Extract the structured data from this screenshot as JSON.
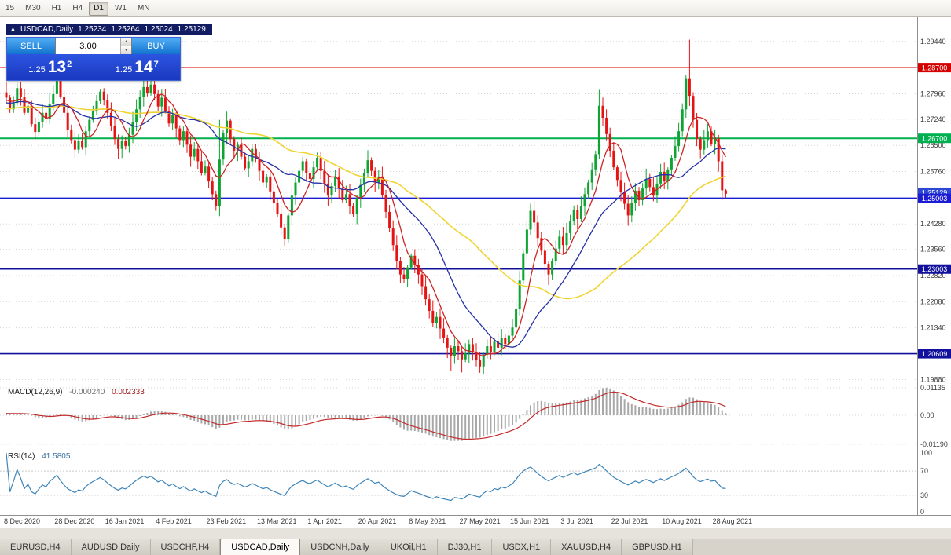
{
  "toolbar": {
    "timeframes": [
      {
        "label": "15",
        "active": false
      },
      {
        "label": "M30",
        "active": false
      },
      {
        "label": "H1",
        "active": false
      },
      {
        "label": "H4",
        "active": false
      },
      {
        "label": "D1",
        "active": true
      },
      {
        "label": "W1",
        "active": false
      },
      {
        "label": "MN",
        "active": false
      }
    ]
  },
  "chart_header": {
    "collapse_icon": "▲",
    "symbol": "USDCAD,Daily",
    "open": "1.25234",
    "high": "1.25264",
    "low": "1.25024",
    "close": "1.25129"
  },
  "trade_panel": {
    "sell_label": "SELL",
    "buy_label": "BUY",
    "volume": "3.00",
    "spinner_up_icon": "▲",
    "spinner_down_icon": "▼",
    "sell_price": {
      "prefix": "1.25",
      "big": "13",
      "sup": "2"
    },
    "buy_price": {
      "prefix": "1.25",
      "big": "14",
      "sup": "7"
    }
  },
  "price_axis": {
    "ticks": [
      {
        "label": "1.29440",
        "value": 1.2944
      },
      {
        "label": "1.27960",
        "value": 1.2796
      },
      {
        "label": "1.27240",
        "value": 1.2724
      },
      {
        "label": "1.26500",
        "value": 1.265
      },
      {
        "label": "1.25760",
        "value": 1.2576
      },
      {
        "label": "1.24280",
        "value": 1.2428
      },
      {
        "label": "1.23560",
        "value": 1.2356
      },
      {
        "label": "1.22820",
        "value": 1.2282
      },
      {
        "label": "1.22080",
        "value": 1.2208
      },
      {
        "label": "1.21340",
        "value": 1.2134
      },
      {
        "label": "1.19880",
        "value": 1.1988
      }
    ]
  },
  "levels": [
    {
      "value": 1.287,
      "label": "1.28700",
      "color": "#d40000",
      "width": 1.2
    },
    {
      "value": 1.267,
      "label": "1.26700",
      "color": "#00b050",
      "width": 2
    },
    {
      "value": 1.25003,
      "label": "1.25003",
      "color": "#1b1bd4",
      "width": 2
    },
    {
      "value": 1.23003,
      "label": "1.23003",
      "color": "#11119e",
      "width": 1.6
    },
    {
      "value": 1.20609,
      "label": "1.20609",
      "color": "#11119e",
      "width": 1.6
    }
  ],
  "current_price": {
    "value": 1.25129,
    "label": "1.25129",
    "color": "#2b47d4"
  },
  "macd_panel": {
    "name": "MACD(12,26,9)",
    "value1": "-0.000240",
    "value2": "0.002333",
    "axis_labels": [
      {
        "text": "0.01135",
        "value": 0.01135
      },
      {
        "text": "0.00",
        "value": 0
      },
      {
        "text": "-0.01190",
        "value": -0.0119
      }
    ]
  },
  "rsi_panel": {
    "name": "RSI(14)",
    "value": "41.5805",
    "axis_labels": [
      {
        "text": "100",
        "value": 100
      },
      {
        "text": "70",
        "value": 70
      },
      {
        "text": "30",
        "value": 30
      },
      {
        "text": "0",
        "value": 0
      }
    ],
    "levels": [
      70,
      30
    ]
  },
  "bottom_tabs": [
    {
      "label": "EURUSD,H4",
      "active": false
    },
    {
      "label": "AUDUSD,Daily",
      "active": false
    },
    {
      "label": "USDCHF,H4",
      "active": false
    },
    {
      "label": "USDCAD,Daily",
      "active": true
    },
    {
      "label": "USDCNH,Daily",
      "active": false
    },
    {
      "label": "UKOil,H1",
      "active": false
    },
    {
      "label": "DJ30,H1",
      "active": false
    },
    {
      "label": "USDX,H1",
      "active": false
    },
    {
      "label": "XAUUSD,H4",
      "active": false
    },
    {
      "label": "GBPUSD,H1",
      "active": false
    }
  ],
  "chart_data": {
    "type": "candlestick",
    "symbol": "USDCAD",
    "timeframe": "Daily",
    "last_candle": {
      "open": 1.25234,
      "high": 1.25264,
      "low": 1.25024,
      "close": 1.25129
    },
    "up_color": "#0ea432",
    "down_color": "#e41414",
    "x_labels": [
      "8 Dec 2020",
      "28 Dec 2020",
      "16 Jan 2021",
      "4 Feb 2021",
      "23 Feb 2021",
      "13 Mar 2021",
      "1 Apr 2021",
      "20 Apr 2021",
      "8 May 2021",
      "27 May 2021",
      "15 Jun 2021",
      "3 Jul 2021",
      "22 Jul 2021",
      "10 Aug 2021",
      "28 Aug 2021"
    ],
    "x_label_step": 14,
    "price_range": {
      "top": 1.2999,
      "bottom": 1.1976
    },
    "first_open": 1.28,
    "closes": [
      1.2785,
      1.2752,
      1.277,
      1.2812,
      1.2788,
      1.2742,
      1.2762,
      1.271,
      1.2688,
      1.2715,
      1.2742,
      1.2726,
      1.2768,
      1.2795,
      1.2832,
      1.2788,
      1.2742,
      1.2695,
      1.2665,
      1.2638,
      1.2662,
      1.2645,
      1.269,
      1.2722,
      1.2748,
      1.2775,
      1.2802,
      1.2778,
      1.2742,
      1.2705,
      1.2668,
      1.264,
      1.2662,
      1.2648,
      1.268,
      1.2715,
      1.2752,
      1.2788,
      1.2815,
      1.2798,
      1.2822,
      1.2795,
      1.276,
      1.2785,
      1.2748,
      1.2712,
      1.2735,
      1.2698,
      1.2665,
      1.269,
      1.2652,
      1.2618,
      1.264,
      1.2605,
      1.2572,
      1.259,
      1.2548,
      1.2512,
      1.2478,
      1.261,
      1.2685,
      1.272,
      1.2668,
      1.2635,
      1.2652,
      1.2618,
      1.2585,
      1.2605,
      1.264,
      1.2612,
      1.2578,
      1.2545,
      1.2562,
      1.252,
      1.2488,
      1.2455,
      1.2418,
      1.2385,
      1.2452,
      1.2508,
      1.2545,
      1.2578,
      1.2605,
      1.2572,
      1.2555,
      1.2588,
      1.2615,
      1.2578,
      1.2542,
      1.2508,
      1.2535,
      1.2562,
      1.2528,
      1.2495,
      1.2512,
      1.2478,
      1.2455,
      1.2502,
      1.2538,
      1.2572,
      1.2608,
      1.2578,
      1.2545,
      1.2562,
      1.251,
      1.2462,
      1.2415,
      1.2368,
      1.2322,
      1.2285,
      1.2272,
      1.2305,
      1.2338,
      1.2312,
      1.2285,
      1.2252,
      1.2215,
      1.2182,
      1.2148,
      1.2165,
      1.2132,
      1.2105,
      1.2078,
      1.2055,
      1.2082,
      1.2068,
      1.2045,
      1.2062,
      1.2088,
      1.2065,
      1.2042,
      1.2025,
      1.2058,
      1.2082,
      1.2065,
      1.2095,
      1.2078,
      1.2105,
      1.2088,
      1.2112,
      1.2135,
      1.2188,
      1.2268,
      1.2345,
      1.2412,
      1.2465,
      1.2432,
      1.2388,
      1.2352,
      1.2315,
      1.2285,
      1.2322,
      1.2358,
      1.2392,
      1.2368,
      1.2402,
      1.2435,
      1.2468,
      1.2442,
      1.2478,
      1.2512,
      1.2545,
      1.2582,
      1.2625,
      1.2762,
      1.2728,
      1.2682,
      1.2635,
      1.2588,
      1.2552,
      1.2518,
      1.2485,
      1.2452,
      1.2488,
      1.2522,
      1.2495,
      1.2528,
      1.2555,
      1.2532,
      1.2508,
      1.2542,
      1.2575,
      1.2548,
      1.2582,
      1.2615,
      1.2648,
      1.269,
      1.2752,
      1.284,
      1.279,
      1.2722,
      1.2668,
      1.2638,
      1.2665,
      1.269,
      1.2655,
      1.267,
      1.2605,
      1.2523,
      1.2513
    ],
    "wick_overrides": [
      {
        "i": 14,
        "h": 1.2848
      },
      {
        "i": 40,
        "h": 1.2843
      },
      {
        "i": 58,
        "l": 1.2465
      },
      {
        "i": 59,
        "h": 1.2722
      },
      {
        "i": 77,
        "l": 1.2365
      },
      {
        "i": 96,
        "l": 1.2448
      },
      {
        "i": 110,
        "l": 1.2262
      },
      {
        "i": 123,
        "l": 1.2013
      },
      {
        "i": 126,
        "l": 1.2008
      },
      {
        "i": 131,
        "l": 1.2007
      },
      {
        "i": 145,
        "h": 1.2485
      },
      {
        "i": 164,
        "h": 1.2807
      },
      {
        "i": 172,
        "l": 1.2423
      },
      {
        "i": 189,
        "h": 1.2949
      },
      {
        "i": 190,
        "l": 1.27
      },
      {
        "i": 199,
        "h": 1.25264,
        "l": 1.25024
      }
    ],
    "indicators": {
      "ma_fast": {
        "period": 7,
        "color": "#cc2424"
      },
      "ma_mid": {
        "period": 21,
        "color": "#2531a8"
      },
      "ma_slow": {
        "period": 50,
        "color": "#f0d435"
      },
      "macd": {
        "fast": 12,
        "slow": 26,
        "signal": 9,
        "histogram_color": "#a8a8a8",
        "signal_color": "#c22b2b",
        "values": [
          "-0.000240",
          "0.002333"
        ]
      },
      "rsi": {
        "period": 14,
        "color": "#3f85b8",
        "value": "41.5805",
        "levels": [
          70,
          30
        ]
      }
    }
  }
}
